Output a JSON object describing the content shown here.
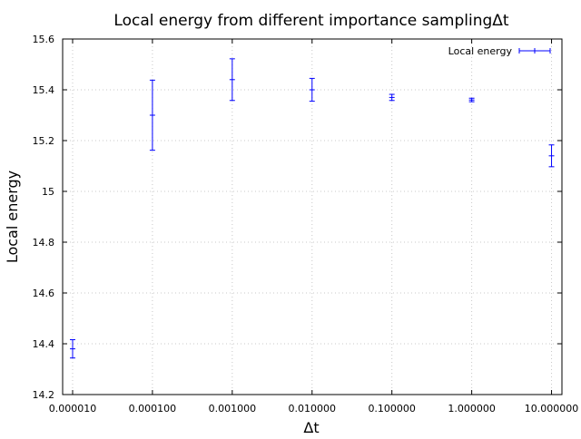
{
  "chart_data": {
    "type": "scatter",
    "title": "Local energy from different importance samplingΔt",
    "xlabel": "Δt",
    "ylabel": "Local energy",
    "x_scale": "log",
    "xlim": [
      7.5e-06,
      13.5
    ],
    "ylim": [
      14.2,
      15.6
    ],
    "grid": true,
    "legend_position": "top-right",
    "x_ticks": [
      1e-05,
      0.0001,
      0.001,
      0.01,
      0.1,
      1,
      10
    ],
    "x_tick_labels": [
      "0.000010",
      "0.000100",
      "0.001000",
      "0.010000",
      "0.100000",
      "1.000000",
      "10.000000"
    ],
    "y_ticks": [
      14.2,
      14.4,
      14.6,
      14.8,
      15.0,
      15.2,
      15.4,
      15.6
    ],
    "y_tick_labels": [
      "14.2",
      "14.4",
      "14.6",
      "14.8",
      "15",
      "15.2",
      "15.4",
      "15.6"
    ],
    "series": [
      {
        "name": "Local energy",
        "color": "#0000ff",
        "x": [
          1e-05,
          0.0001,
          0.001,
          0.01,
          0.1,
          1,
          10
        ],
        "y": [
          14.38,
          15.3,
          15.44,
          15.4,
          15.37,
          15.36,
          15.14
        ],
        "error": [
          0.036,
          0.138,
          0.082,
          0.045,
          0.012,
          0.007,
          0.043
        ]
      }
    ]
  }
}
